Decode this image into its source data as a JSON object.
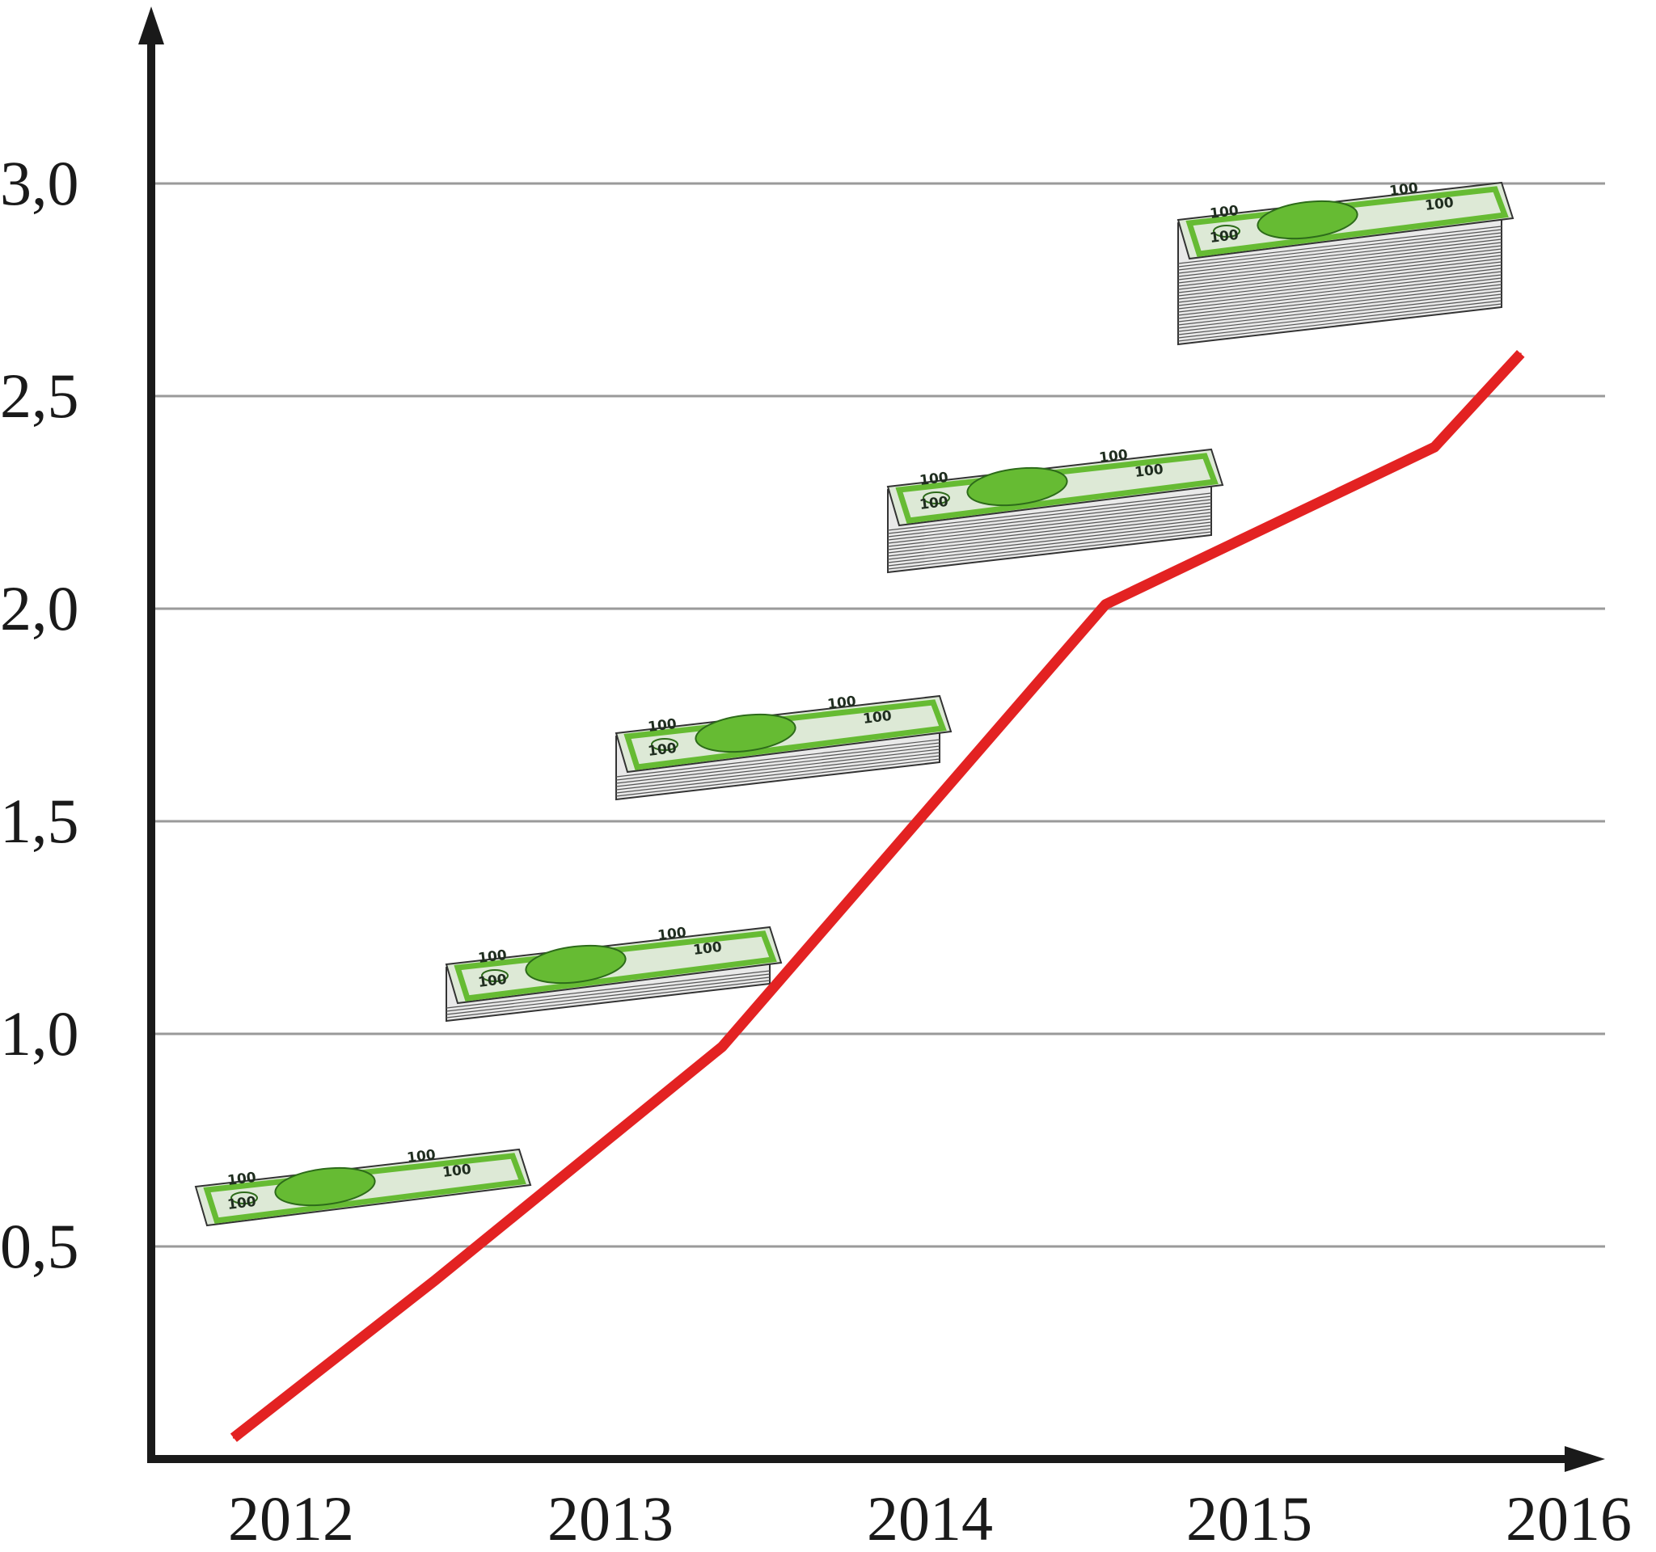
{
  "chart_data": {
    "type": "line",
    "title": "",
    "xlabel": "",
    "ylabel": "",
    "x_ticks": [
      "2012",
      "2013",
      "2014",
      "2015",
      "2016"
    ],
    "y_ticks": [
      "0,5",
      "1,0",
      "1,5",
      "2,0",
      "2,5",
      "3,0"
    ],
    "ylim": [
      0,
      3.5
    ],
    "grid": true,
    "series": [
      {
        "color": "#e32222",
        "points": [
          {
            "x": 2011.82,
            "y": 0.05
          },
          {
            "x": 2012.45,
            "y": 0.42
          },
          {
            "x": 2013.35,
            "y": 0.97
          },
          {
            "x": 2014.55,
            "y": 2.01
          },
          {
            "x": 2015.58,
            "y": 2.38
          },
          {
            "x": 2015.85,
            "y": 2.6
          }
        ]
      }
    ],
    "decorations": {
      "banknote_stacks": [
        {
          "denomination": "100",
          "layers": 1
        },
        {
          "denomination": "100",
          "layers": 5
        },
        {
          "denomination": "100",
          "layers": 8
        },
        {
          "denomination": "100",
          "layers": 14
        },
        {
          "denomination": "100",
          "layers": 26
        }
      ],
      "note_color": "#66bb33"
    }
  }
}
